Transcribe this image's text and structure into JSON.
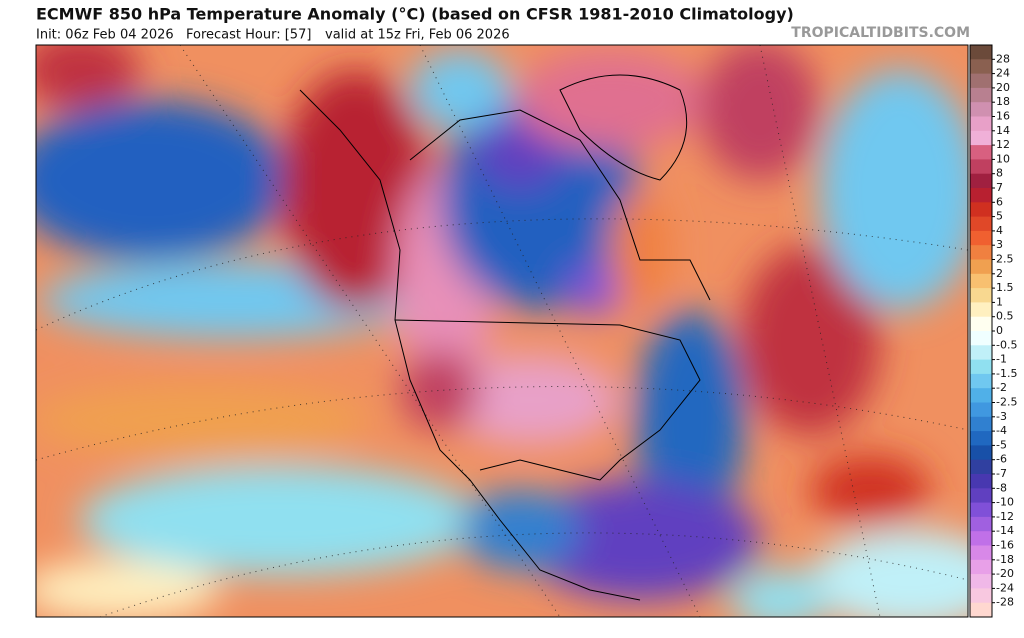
{
  "header": {
    "title": "ECMWF 850 hPa Temperature Anomaly (°C) (based on CFSR 1981-2010 Climatology)",
    "init": "Init: 06z Feb 04 2026",
    "forecast_hour": "Forecast Hour: [57]",
    "valid": "valid at 15z Fri, Feb 06 2026",
    "site": "TROPICALTIDBITS.COM"
  },
  "colorbar": {
    "labels": [
      "28",
      "24",
      "20",
      "18",
      "16",
      "14",
      "12",
      "10",
      "8",
      "7",
      "6",
      "5",
      "4",
      "3",
      "2.5",
      "2",
      "1.5",
      "1",
      "0.5",
      "0",
      "-0.5",
      "-1",
      "-1.5",
      "-2",
      "-2.5",
      "-3",
      "-4",
      "-5",
      "-6",
      "-7",
      "-8",
      "-10",
      "-12",
      "-14",
      "-16",
      "-18",
      "-20",
      "-24",
      "-28"
    ],
    "colors": [
      "#6b4a3a",
      "#8a6050",
      "#a07070",
      "#b88090",
      "#d090b0",
      "#e8a0c8",
      "#f0b0d8",
      "#d86080",
      "#c04060",
      "#a02040",
      "#b82030",
      "#d03020",
      "#e04828",
      "#f06030",
      "#f08040",
      "#f0a050",
      "#f8c070",
      "#f8d890",
      "#fff0c0",
      "#fffff0",
      "#f0ffff",
      "#c0f0f8",
      "#90e0f0",
      "#70c8f0",
      "#50b0e8",
      "#4098e0",
      "#3080d0",
      "#2068c0",
      "#1850a8",
      "#3040a0",
      "#4838b0",
      "#6040c0",
      "#8050d8",
      "#a060e0",
      "#c070e8",
      "#d888e8",
      "#e8a0e8",
      "#f0b8e8",
      "#f8c8e0",
      "#ffd8d0"
    ]
  }
}
